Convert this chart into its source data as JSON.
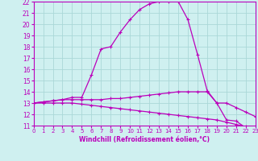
{
  "bg_color": "#cff0f0",
  "grid_color": "#aad8d8",
  "line_color": "#bb00bb",
  "marker": "+",
  "xlabel": "Windchill (Refroidissement éolien,°C)",
  "xlim": [
    0,
    23
  ],
  "ylim": [
    11,
    22
  ],
  "xticks": [
    0,
    1,
    2,
    3,
    4,
    5,
    6,
    7,
    8,
    9,
    10,
    11,
    12,
    13,
    14,
    15,
    16,
    17,
    18,
    19,
    20,
    21,
    22,
    23
  ],
  "yticks": [
    11,
    12,
    13,
    14,
    15,
    16,
    17,
    18,
    19,
    20,
    21,
    22
  ],
  "curve1_x": [
    0,
    1,
    2,
    3,
    4,
    5,
    6,
    7,
    8,
    9,
    10,
    11,
    12,
    13,
    14,
    15,
    16,
    17,
    18,
    19,
    20,
    21,
    22,
    23
  ],
  "curve1_y": [
    13.0,
    13.1,
    13.2,
    13.3,
    13.5,
    13.5,
    15.5,
    17.8,
    18.0,
    19.3,
    20.4,
    21.3,
    21.8,
    22.0,
    22.0,
    22.0,
    20.4,
    17.3,
    14.1,
    13.0,
    11.5,
    11.4,
    10.8,
    10.7
  ],
  "curve2_x": [
    0,
    1,
    2,
    3,
    4,
    5,
    6,
    7,
    8,
    9,
    10,
    11,
    12,
    13,
    14,
    15,
    16,
    17,
    18,
    19,
    20,
    21,
    22,
    23
  ],
  "curve2_y": [
    13.0,
    13.1,
    13.2,
    13.3,
    13.3,
    13.3,
    13.3,
    13.3,
    13.4,
    13.4,
    13.5,
    13.6,
    13.7,
    13.8,
    13.9,
    14.0,
    14.0,
    14.0,
    14.0,
    13.0,
    13.0,
    12.6,
    12.2,
    11.8
  ],
  "curve3_x": [
    0,
    1,
    2,
    3,
    4,
    5,
    6,
    7,
    8,
    9,
    10,
    11,
    12,
    13,
    14,
    15,
    16,
    17,
    18,
    19,
    20,
    21,
    22,
    23
  ],
  "curve3_y": [
    13.0,
    13.0,
    13.0,
    13.0,
    13.0,
    12.9,
    12.8,
    12.7,
    12.6,
    12.5,
    12.4,
    12.3,
    12.2,
    12.1,
    12.0,
    11.9,
    11.8,
    11.7,
    11.6,
    11.5,
    11.3,
    11.1,
    10.9,
    10.7
  ]
}
